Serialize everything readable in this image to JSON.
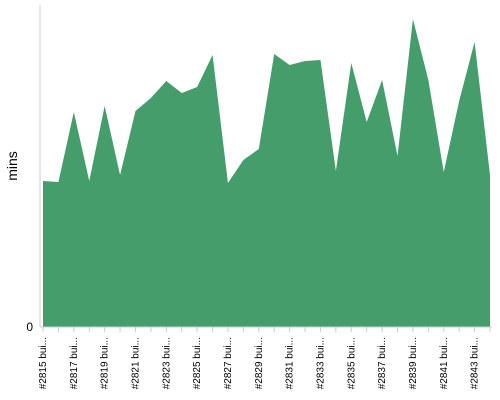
{
  "chart_data": {
    "type": "area",
    "y_label": "mins",
    "categories": [
      "#2815 bui...",
      null,
      "#2817 bui...",
      null,
      "#2819 bui...",
      null,
      "#2821 bui...",
      null,
      "#2823 bui...",
      null,
      "#2825 bui...",
      null,
      "#2827 bui...",
      null,
      "#2829 bui...",
      null,
      "#2831 bui...",
      null,
      "#2833 bui...",
      null,
      "#2835 bui...",
      null,
      "#2837 bui...",
      null,
      "#2839 bui...",
      null,
      "#2841 bui...",
      null,
      "#2843 bui...",
      null
    ],
    "values": [
      14.6,
      14.5,
      21.5,
      14.6,
      22.1,
      15.2,
      21.6,
      22.9,
      24.6,
      23.4,
      24.0,
      27.2,
      14.4,
      16.7,
      17.8,
      27.3,
      26.2,
      26.6,
      26.7,
      15.6,
      26.4,
      20.5,
      24.7,
      17.1,
      30.8,
      24.7,
      15.5,
      22.6,
      28.5,
      15.2
    ],
    "color": "#449d6b",
    "ylim": [
      0,
      32.2
    ],
    "yticks": [
      0
    ]
  }
}
